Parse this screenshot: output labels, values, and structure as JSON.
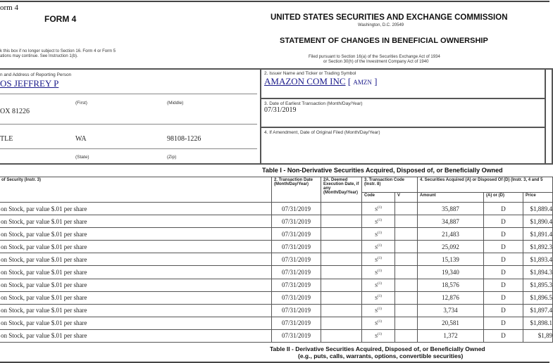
{
  "header": {
    "form_label": "orm 4",
    "form_title": "FORM 4",
    "checkbox_text_1": "k this box if no longer subject to Section 16. Form 4 or Form 5",
    "checkbox_text_2": "ations may continue. See Instruction 1(b).",
    "agency": "UNITED STATES SECURITIES AND EXCHANGE COMMISSION",
    "agency_address": "Washington, D.C. 20549",
    "statement_title": "STATEMENT OF CHANGES IN BENEFICIAL OWNERSHIP",
    "filed_1": "Filed pursuant to Section 16(a) of the Securities Exchange Act of 1934",
    "filed_2": "or Section 30(h) of the Investment Company Act of 1940"
  },
  "reporting_person": {
    "label": "n and Address of Reporting Person",
    "name": "OS JEFFREY P",
    "first_label": "(First)",
    "middle_label": "(Middle)",
    "street": "OX 81226",
    "city": "TLE",
    "state": "WA",
    "zip": "98108-1226",
    "state_label": "(State)",
    "zip_label": "(Zip)"
  },
  "issuer": {
    "label": "2. Issuer Name and Ticker or Trading Symbol",
    "name": "AMAZON COM INC",
    "ticker": "AMZN",
    "earliest_label": "3. Date of Earliest Transaction (Month/Day/Year)",
    "earliest_date": "07/31/2019",
    "amendment_label": "4. If Amendment, Date of Original Filed (Month/Day/Year)"
  },
  "table1": {
    "title": "Table I - Non-Derivative Securities Acquired, Disposed of, or Beneficially Owned",
    "headers": {
      "security": "of Security (Instr. 3)",
      "date": "2. Transaction Date (Month/Day/Year)",
      "deemed": "2A. Deemed Execution Date, if any (Month/Day/Year)",
      "code_group": "3. Transaction Code (Instr. 8)",
      "code": "Code",
      "v": "V",
      "acq_group": "4. Securities Acquired (A) or Disposed Of (D) (Instr. 3, 4 and 5",
      "amount": "Amount",
      "ad": "(A) or (D)",
      "price": "Price"
    },
    "rows": [
      {
        "security": "on Stock, par value $.01 per share",
        "date": "07/31/2019",
        "code": "S",
        "fn": "(1)",
        "amount": "35,887",
        "ad": "D",
        "price": "$1,889.4"
      },
      {
        "security": "on Stock, par value $.01 per share",
        "date": "07/31/2019",
        "code": "S",
        "fn": "(1)",
        "amount": "34,887",
        "ad": "D",
        "price": "$1,890.4"
      },
      {
        "security": "on Stock, par value $.01 per share",
        "date": "07/31/2019",
        "code": "S",
        "fn": "(1)",
        "amount": "21,483",
        "ad": "D",
        "price": "$1,891.4"
      },
      {
        "security": "on Stock, par value $.01 per share",
        "date": "07/31/2019",
        "code": "S",
        "fn": "(1)",
        "amount": "25,092",
        "ad": "D",
        "price": "$1,892.3"
      },
      {
        "security": "on Stock, par value $.01 per share",
        "date": "07/31/2019",
        "code": "S",
        "fn": "(1)",
        "amount": "15,139",
        "ad": "D",
        "price": "$1,893.4"
      },
      {
        "security": "on Stock, par value $.01 per share",
        "date": "07/31/2019",
        "code": "S",
        "fn": "(1)",
        "amount": "19,340",
        "ad": "D",
        "price": "$1,894.3"
      },
      {
        "security": "on Stock, par value $.01 per share",
        "date": "07/31/2019",
        "code": "S",
        "fn": "(1)",
        "amount": "18,576",
        "ad": "D",
        "price": "$1,895.3"
      },
      {
        "security": "on Stock, par value $.01 per share",
        "date": "07/31/2019",
        "code": "S",
        "fn": "(1)",
        "amount": "12,876",
        "ad": "D",
        "price": "$1,896.5"
      },
      {
        "security": "on Stock, par value $.01 per share",
        "date": "07/31/2019",
        "code": "S",
        "fn": "(1)",
        "amount": "3,734",
        "ad": "D",
        "price": "$1,897.4"
      },
      {
        "security": "on Stock, par value $.01 per share",
        "date": "07/31/2019",
        "code": "S",
        "fn": "(1)",
        "amount": "20,581",
        "ad": "D",
        "price": "$1,898.1"
      },
      {
        "security": "on Stock, par value $.01 per share",
        "date": "07/31/2019",
        "code": "S",
        "fn": "(1)",
        "amount": "1,372",
        "ad": "D",
        "price": "$1,89"
      }
    ]
  },
  "table2": {
    "title": "Table II - Derivative Securities Acquired, Disposed of, or Beneficially Owned",
    "subtitle": "(e.g., puts, calls, warrants, options, convertible securities)"
  }
}
